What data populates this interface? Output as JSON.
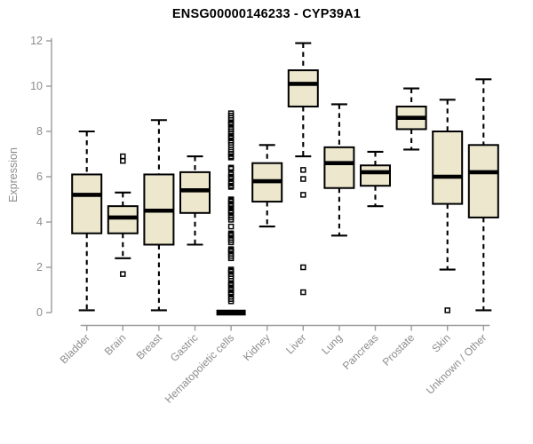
{
  "chart_data": {
    "type": "boxplot",
    "title": "ENSG00000146233 - CYP39A1",
    "ylabel": "Expression",
    "xlabel": "",
    "ylim": [
      0,
      12
    ],
    "yticks": [
      0,
      2,
      4,
      6,
      8,
      10,
      12
    ],
    "grid": false,
    "legend": false,
    "box_fill_color": "#ede7ce",
    "box_line_color": "#000000",
    "axis_color": "#9b9b9b",
    "label_color": "#8c8c8c",
    "categories": [
      "Bladder",
      "Brain",
      "Breast",
      "Gastric",
      "Hematopoietic cells",
      "Kidney",
      "Liver",
      "Lung",
      "Pancreas",
      "Prostate",
      "Skin",
      "Unknown / Other"
    ],
    "series": [
      {
        "category": "Bladder",
        "low": 0.1,
        "q1": 3.5,
        "median": 5.2,
        "q3": 6.1,
        "high": 8.0,
        "outliers": []
      },
      {
        "category": "Brain",
        "low": 2.4,
        "q1": 3.5,
        "median": 4.2,
        "q3": 4.7,
        "high": 5.3,
        "outliers": [
          6.9,
          6.7,
          1.7
        ]
      },
      {
        "category": "Breast",
        "low": 0.1,
        "q1": 3.0,
        "median": 4.5,
        "q3": 6.1,
        "high": 8.5,
        "outliers": []
      },
      {
        "category": "Gastric",
        "low": 3.0,
        "q1": 4.4,
        "median": 5.4,
        "q3": 6.2,
        "high": 6.9,
        "outliers": []
      },
      {
        "category": "Hematopoietic cells",
        "low": 0,
        "q1": 0,
        "median": 0,
        "q3": 0,
        "high": 0,
        "outliers": [
          8.8,
          8.7,
          8.6,
          8.5,
          8.4,
          8.35,
          8.3,
          8.2,
          8.1,
          8.0,
          7.9,
          7.8,
          7.75,
          7.7,
          7.6,
          7.5,
          7.4,
          7.2,
          7.1,
          7.0,
          6.9,
          6.85,
          6.4,
          6.35,
          6.1,
          6.0,
          5.95,
          5.8,
          5.7,
          5.6,
          5.55,
          5.0,
          4.95,
          4.9,
          4.8,
          4.75,
          4.7,
          4.6,
          4.5,
          4.45,
          4.4,
          4.3,
          4.2,
          4.1,
          3.8,
          3.5,
          3.45,
          3.4,
          3.3,
          3.2,
          3.1,
          2.8,
          2.75,
          2.7,
          2.6,
          2.5,
          2.4,
          1.9,
          1.85,
          1.8,
          1.7,
          1.6,
          1.5,
          1.3,
          1.25,
          1.2,
          1.1,
          1.0,
          0.9,
          0.85,
          0.8,
          0.7,
          0.6,
          0.5
        ]
      },
      {
        "category": "Kidney",
        "low": 3.8,
        "q1": 4.9,
        "median": 5.8,
        "q3": 6.6,
        "high": 7.4,
        "outliers": []
      },
      {
        "category": "Liver",
        "low": 6.9,
        "q1": 9.1,
        "median": 10.1,
        "q3": 10.7,
        "high": 11.9,
        "outliers": [
          6.3,
          5.9,
          5.2,
          2.0,
          0.9
        ]
      },
      {
        "category": "Lung",
        "low": 3.4,
        "q1": 5.5,
        "median": 6.6,
        "q3": 7.3,
        "high": 9.2,
        "outliers": []
      },
      {
        "category": "Pancreas",
        "low": 4.7,
        "q1": 5.6,
        "median": 6.2,
        "q3": 6.5,
        "high": 7.1,
        "outliers": []
      },
      {
        "category": "Prostate",
        "low": 7.2,
        "q1": 8.1,
        "median": 8.6,
        "q3": 9.1,
        "high": 9.9,
        "outliers": []
      },
      {
        "category": "Skin",
        "low": 1.9,
        "q1": 4.8,
        "median": 6.0,
        "q3": 8.0,
        "high": 9.4,
        "outliers": [
          0.1
        ]
      },
      {
        "category": "Unknown / Other",
        "low": 0.1,
        "q1": 4.2,
        "median": 6.2,
        "q3": 7.4,
        "high": 10.3,
        "outliers": []
      }
    ]
  }
}
